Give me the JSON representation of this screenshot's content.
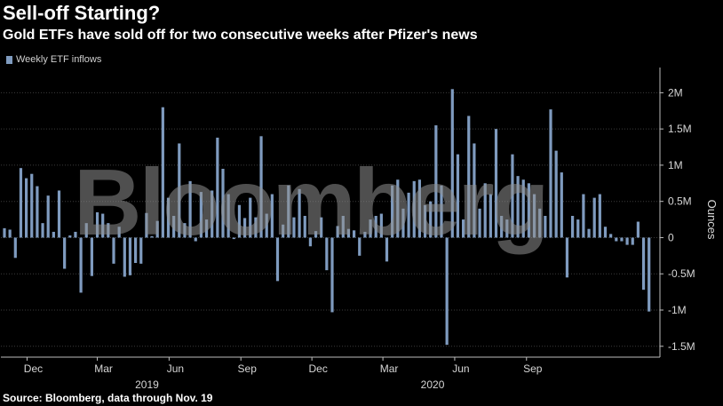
{
  "title": "Sell-off Starting?",
  "subtitle": "Gold ETFs have sold off for two consecutive weeks after Pfizer's news",
  "source": "Source: Bloomberg, data through Nov. 19",
  "watermark": "Bloomberg",
  "colors": {
    "background": "#000000",
    "bar": "#7f9bbf",
    "grid": "#3c3c3c",
    "text": "#d6d6d6"
  },
  "chart_data": {
    "type": "bar",
    "legend": {
      "label": "Weekly ETF inflows",
      "placement": "top-left"
    },
    "ylabel": "Ounces",
    "ylim": [
      -1.65,
      2.25
    ],
    "yticks": [
      {
        "value": 2,
        "label": "2M"
      },
      {
        "value": 1.5,
        "label": "1.5M"
      },
      {
        "value": 1,
        "label": "1M"
      },
      {
        "value": 0.5,
        "label": "0.5M"
      },
      {
        "value": 0,
        "label": "0"
      },
      {
        "value": -0.5,
        "label": "-0.5M"
      },
      {
        "value": -1,
        "label": "-1M"
      },
      {
        "value": -1.5,
        "label": "-1.5M"
      }
    ],
    "x_start": "2018-11-02",
    "x_step_days": 7,
    "xticks": [
      {
        "date": "2018-12-01",
        "label": "Dec"
      },
      {
        "date": "2019-03-01",
        "label": "Mar"
      },
      {
        "date": "2019-06-01",
        "label": "Jun"
      },
      {
        "date": "2019-09-01",
        "label": "Sep"
      },
      {
        "date": "2019-12-01",
        "label": "Dec"
      },
      {
        "date": "2020-03-01",
        "label": "Mar"
      },
      {
        "date": "2020-06-01",
        "label": "Jun"
      },
      {
        "date": "2020-09-01",
        "label": "Sep"
      }
    ],
    "year_labels": [
      {
        "date": "2019-04-20",
        "label": "2019"
      },
      {
        "date": "2020-04-20",
        "label": "2020"
      }
    ],
    "values": [
      0.13,
      0.11,
      -0.28,
      0.96,
      0.82,
      0.88,
      0.71,
      0.2,
      0.58,
      0.08,
      0.65,
      -0.43,
      0.03,
      0.08,
      -0.76,
      0.2,
      -0.53,
      0.35,
      0.33,
      0.2,
      -0.36,
      0.15,
      -0.54,
      -0.52,
      -0.35,
      -0.36,
      0.34,
      0.02,
      0.23,
      1.8,
      0.55,
      0.3,
      1.3,
      0.2,
      0.78,
      -0.05,
      0.63,
      0.25,
      0.65,
      1.38,
      0.95,
      0.6,
      -0.02,
      0.45,
      0.27,
      0.55,
      0.28,
      1.4,
      0.33,
      0.6,
      -0.6,
      0.18,
      0.72,
      0.28,
      0.67,
      0.3,
      -0.12,
      0.09,
      0.28,
      -0.45,
      -1.03,
      0.16,
      0.3,
      0.12,
      0.1,
      -0.25,
      0.08,
      0.25,
      0.3,
      0.33,
      -0.33,
      0.72,
      0.8,
      0.4,
      0.62,
      0.78,
      0.8,
      0.45,
      0.5,
      1.55,
      0.72,
      -1.48,
      2.05,
      1.15,
      0.25,
      1.68,
      1.3,
      0.4,
      0.75,
      0.6,
      1.5,
      0.3,
      0.25,
      1.15,
      0.85,
      0.8,
      0.75,
      0.6,
      0.4,
      0.3,
      1.77,
      1.2,
      0.9,
      -0.55,
      0.3,
      0.25,
      0.6,
      0.12,
      0.55,
      0.6,
      0.15,
      0.05,
      -0.05,
      -0.05,
      -0.1,
      -0.1,
      0.22,
      -0.72,
      -1.02
    ]
  }
}
